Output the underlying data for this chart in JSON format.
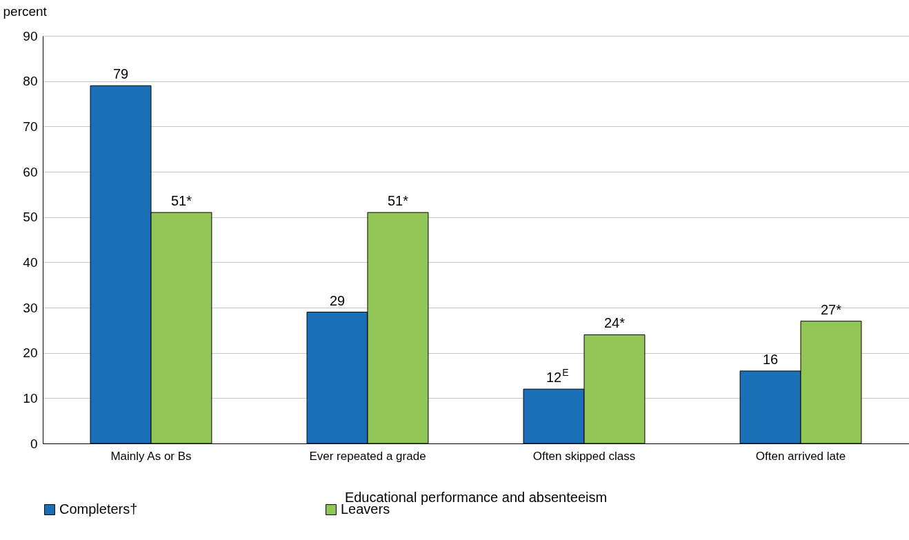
{
  "chart_data": {
    "type": "bar",
    "ylabel": "percent",
    "xlabel": "Educational performance and absenteeism",
    "categories": [
      "Mainly As or Bs",
      "Ever repeated a grade",
      "Often skipped class",
      "Often arrived late"
    ],
    "series": [
      {
        "name": "Completers†",
        "color": "#1b6fb7",
        "values": [
          79,
          29,
          12,
          16
        ],
        "value_labels": [
          "79",
          "29",
          "12$^{E}$",
          "16"
        ]
      },
      {
        "name": "Leavers",
        "color": "#92c758",
        "values": [
          51,
          51,
          24,
          27
        ],
        "value_labels": [
          "51*",
          "51*",
          "24*",
          "27*"
        ]
      }
    ],
    "ylim": [
      0,
      90
    ],
    "yticks": [
      0,
      10,
      20,
      30,
      40,
      50,
      60,
      70,
      80,
      90
    ],
    "grid": "y",
    "legend": "bottom"
  }
}
